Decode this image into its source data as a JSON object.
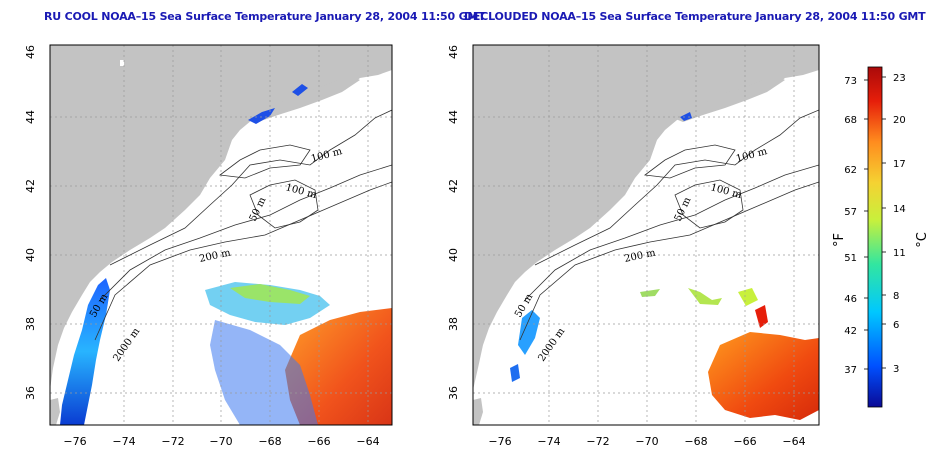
{
  "panels": [
    {
      "title": "RU COOL NOAA–15 Sea Surface Temperature January 28, 2004 11:50 GMT",
      "y_ticks": [
        "46",
        "44",
        "42",
        "40",
        "38",
        "36"
      ],
      "x_ticks": [
        "−76",
        "−74",
        "−72",
        "−70",
        "−68",
        "−66",
        "−64"
      ],
      "contour_labels": [
        "100 m",
        "100 m",
        "50 m",
        "200 m",
        "50 m",
        "2000 m"
      ]
    },
    {
      "title": "DECLOUDED NOAA–15 Sea Surface Temperature January 28, 2004 11:50 GMT",
      "y_ticks": [
        "46",
        "44",
        "42",
        "40",
        "38",
        "36"
      ],
      "x_ticks": [
        "−76",
        "−74",
        "−72",
        "−70",
        "−68",
        "−66",
        "−64"
      ],
      "contour_labels": [
        "100 m",
        "100 m",
        "50 m",
        "200 m",
        "50 m",
        "2000 m"
      ]
    }
  ],
  "colorbar": {
    "fahrenheit_ticks": [
      "73",
      "68",
      "62",
      "57",
      "51",
      "46",
      "42",
      "37"
    ],
    "celsius_ticks": [
      "23",
      "20",
      "17",
      "14",
      "11",
      "8",
      "6",
      "3"
    ],
    "fahrenheit_unit": "°F",
    "celsius_unit": "°C",
    "colors": [
      "#0a0a96",
      "#0050ff",
      "#00c8ff",
      "#32e6a0",
      "#c8f03c",
      "#f5d232",
      "#ff8c1e",
      "#e61e0a",
      "#aa0a0a"
    ]
  },
  "map_colors": {
    "land": "#c3c3c3",
    "ocean": "#ffffff",
    "grid": "#9a9a9a"
  }
}
